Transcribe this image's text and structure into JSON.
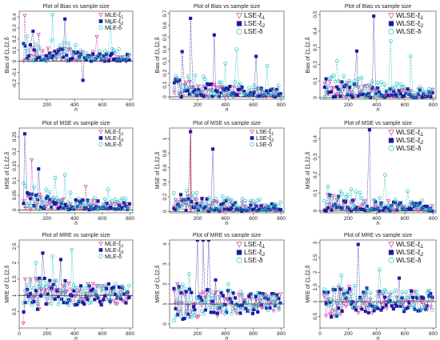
{
  "colors": {
    "xi1": "#d63fa5",
    "xi2": "#1a1aa0",
    "delta": "#28c4c8",
    "highlight": "#ff0000",
    "trend": "#555555"
  },
  "chart_data": [
    {
      "type": "scatter",
      "title": "Plot of Bias vs sample size",
      "xlabel": "n",
      "ylabel": "Bias of ξ1,ξ2,δ",
      "xlim": [
        0,
        820
      ],
      "ylim": [
        -0.34,
        0.45
      ],
      "yticks": [
        -0.2,
        -0.1,
        0.0,
        0.1,
        0.2,
        0.3,
        0.4
      ],
      "xticks": [
        200,
        400,
        600,
        800
      ],
      "legend": "top-right",
      "legend_size": "small",
      "series": [
        {
          "name": "MLE-ξ1",
          "key": "xi1"
        },
        {
          "name": "MLE-ξ2",
          "key": "xi2"
        },
        {
          "name": "MLE-δ",
          "key": "delta"
        }
      ],
      "ref_line": 0,
      "peaks": [
        [
          40,
          0.41,
          0
        ],
        [
          100,
          0.27,
          1
        ],
        [
          140,
          0.24,
          0
        ],
        [
          240,
          0.42,
          2
        ],
        [
          330,
          0.38,
          1
        ],
        [
          660,
          0.35,
          2
        ],
        [
          460,
          -0.17,
          1
        ],
        [
          560,
          0.22,
          0
        ]
      ]
    },
    {
      "type": "scatter",
      "title": "Plot of Bias vs sample size",
      "xlabel": "n",
      "ylabel": "Bias of ξ1,ξ2,δ",
      "xlim": [
        0,
        820
      ],
      "ylim": [
        -0.02,
        0.72
      ],
      "yticks": [
        0.0,
        0.1,
        0.2,
        0.3,
        0.4,
        0.5,
        0.6,
        0.7
      ],
      "xticks": [
        200,
        400,
        600,
        800
      ],
      "legend": "top-right",
      "legend_size": "large",
      "series": [
        {
          "name": "LSE-ξ1",
          "key": "xi1"
        },
        {
          "name": "LSE-ξ2",
          "key": "xi2"
        },
        {
          "name": "LSE-δ",
          "key": "delta"
        }
      ],
      "ref_line": 0,
      "peaks": [
        [
          150,
          0.66,
          1
        ],
        [
          320,
          0.52,
          1
        ],
        [
          480,
          0.4,
          2
        ],
        [
          620,
          0.34,
          1
        ],
        [
          90,
          0.38,
          1
        ],
        [
          400,
          0.28,
          2
        ],
        [
          700,
          0.26,
          2
        ]
      ]
    },
    {
      "type": "scatter",
      "title": "Plot of Bias vs sample size",
      "xlabel": "n",
      "ylabel": "Bias of ξ1,ξ2,δ",
      "xlim": [
        0,
        820
      ],
      "ylim": [
        -0.01,
        0.52
      ],
      "yticks": [
        0.0,
        0.1,
        0.2,
        0.3,
        0.4,
        0.5
      ],
      "xticks": [
        200,
        400,
        600,
        800
      ],
      "legend": "top-right",
      "legend_size": "large",
      "series": [
        {
          "name": "WLSE-ξ1",
          "key": "xi1"
        },
        {
          "name": "WLSE-ξ2",
          "key": "xi2"
        },
        {
          "name": "WLSE-δ",
          "key": "delta"
        }
      ],
      "ref_line": 0,
      "peaks": [
        [
          380,
          0.49,
          1
        ],
        [
          500,
          0.34,
          2
        ],
        [
          260,
          0.28,
          1
        ],
        [
          640,
          0.25,
          2
        ],
        [
          120,
          0.22,
          2
        ]
      ]
    },
    {
      "type": "scatter",
      "title": "Plot of MSE vs sample size",
      "xlabel": "n",
      "ylabel": "MSE of ξ1,ξ2,δ",
      "xlim": [
        0,
        820
      ],
      "ylim": [
        -0.01,
        0.28
      ],
      "yticks": [
        0.0,
        0.05,
        0.1,
        0.15,
        0.2,
        0.25
      ],
      "xticks": [
        200,
        400,
        600,
        800
      ],
      "legend": "top-right",
      "legend_size": "small",
      "series": [
        {
          "name": "MLE-ξ1",
          "key": "xi1"
        },
        {
          "name": "MLE-ξ2",
          "key": "xi2"
        },
        {
          "name": "MLE-δ",
          "key": "delta"
        }
      ],
      "ref_line": 0,
      "peaks": [
        [
          40,
          0.26,
          1
        ],
        [
          90,
          0.17,
          0
        ],
        [
          140,
          0.14,
          1
        ],
        [
          260,
          0.11,
          2
        ],
        [
          330,
          0.12,
          2
        ],
        [
          480,
          0.08,
          0
        ],
        [
          640,
          0.07,
          2
        ]
      ]
    },
    {
      "type": "scatter",
      "title": "Plot of MSE vs sample size",
      "xlabel": "n",
      "ylabel": "MSE of ξ1,ξ2,δ",
      "xlim": [
        0,
        820
      ],
      "ylim": [
        -0.02,
        1.15
      ],
      "yticks": [
        0.0,
        0.2,
        0.4,
        0.6,
        0.8,
        1.0
      ],
      "xticks": [
        200,
        400,
        600,
        800
      ],
      "legend": "top-right",
      "legend_size": "small",
      "series": [
        {
          "name": "LSE-ξ1",
          "key": "xi1"
        },
        {
          "name": "LSE-ξ2",
          "key": "xi2"
        },
        {
          "name": "LSE-δ",
          "key": "delta"
        }
      ],
      "ref_line": 0,
      "vline": 150,
      "peaks": [
        [
          150,
          1.1,
          1
        ],
        [
          310,
          0.86,
          1
        ],
        [
          110,
          0.14,
          2
        ],
        [
          420,
          0.18,
          2
        ],
        [
          600,
          0.14,
          2
        ]
      ]
    },
    {
      "type": "scatter",
      "title": "Plot of MSE vs sample size",
      "xlabel": "n",
      "ylabel": "MSE of ξ1,ξ2,δ",
      "xlim": [
        0,
        820
      ],
      "ylim": [
        -0.01,
        0.46
      ],
      "yticks": [
        0.0,
        0.1,
        0.2,
        0.3,
        0.4
      ],
      "xticks": [
        200,
        400,
        600,
        800
      ],
      "legend": "top-right",
      "legend_size": "large",
      "series": [
        {
          "name": "WLSE-ξ1",
          "key": "xi1"
        },
        {
          "name": "WLSE-ξ2",
          "key": "xi2"
        },
        {
          "name": "WLSE-δ",
          "key": "delta"
        }
      ],
      "ref_line": 0,
      "peaks": [
        [
          350,
          0.45,
          1
        ],
        [
          220,
          0.12,
          2
        ],
        [
          460,
          0.2,
          2
        ],
        [
          620,
          0.11,
          2
        ]
      ]
    },
    {
      "type": "scatter",
      "title": "Plot of MRE vs sample size",
      "xlabel": "n",
      "ylabel": "MRE of ξ1,ξ2,δ",
      "xlim": [
        0,
        820
      ],
      "ylim": [
        0.0,
        2.7
      ],
      "yticks": [
        0.5,
        1.0,
        1.5,
        2.0,
        2.5
      ],
      "xticks": [
        0,
        200,
        400,
        600,
        800
      ],
      "legend": "top-right",
      "legend_size": "small",
      "series": [
        {
          "name": "MLE-ξ1",
          "key": "xi1"
        },
        {
          "name": "MLE-ξ2",
          "key": "xi2"
        },
        {
          "name": "MLE-δ",
          "key": "delta"
        }
      ],
      "ref_line": 1,
      "peaks": [
        [
          120,
          2.0,
          2
        ],
        [
          170,
          2.3,
          1
        ],
        [
          240,
          2.2,
          2
        ],
        [
          300,
          2.1,
          1
        ],
        [
          380,
          2.4,
          2
        ],
        [
          30,
          0.15,
          0
        ]
      ]
    },
    {
      "type": "scatter",
      "title": "Plot of MRE vs sample size",
      "xlabel": "n",
      "ylabel": "MRE of ξ1,ξ2,δ",
      "xlim": [
        0,
        820
      ],
      "ylim": [
        -0.2,
        4.2
      ],
      "yticks": [
        0,
        1,
        2,
        3,
        4
      ],
      "xticks": [
        200,
        400,
        600,
        800
      ],
      "legend": "top-right",
      "legend_size": "large",
      "series": [
        {
          "name": "LSE-ξ1",
          "key": "xi1"
        },
        {
          "name": "LSE-ξ2",
          "key": "xi2"
        },
        {
          "name": "LSE-δ",
          "key": "delta"
        }
      ],
      "ref_line": 1,
      "peaks": [
        [
          200,
          4.2,
          1
        ],
        [
          240,
          4.2,
          1
        ],
        [
          280,
          4.2,
          1
        ],
        [
          140,
          2.5,
          2
        ],
        [
          330,
          2.2,
          1
        ],
        [
          420,
          2.0,
          2
        ]
      ]
    },
    {
      "type": "scatter",
      "title": "Plot of MRE vs sample size",
      "xlabel": "n",
      "ylabel": "MRE of ξ1,ξ2,δ",
      "xlim": [
        0,
        820
      ],
      "ylim": [
        0.1,
        3.1
      ],
      "yticks": [
        0.5,
        1.0,
        1.5,
        2.0,
        2.5,
        3.0
      ],
      "xticks": [
        0,
        200,
        400,
        600,
        800
      ],
      "legend": "top-right",
      "legend_size": "large",
      "series": [
        {
          "name": "WLSE-ξ1",
          "key": "xi1"
        },
        {
          "name": "WLSE-ξ2",
          "key": "xi2"
        },
        {
          "name": "WLSE-δ",
          "key": "delta"
        }
      ],
      "ref_line": 1,
      "peaks": [
        [
          270,
          2.95,
          1
        ],
        [
          420,
          2.1,
          2
        ],
        [
          150,
          1.9,
          2
        ],
        [
          560,
          1.8,
          1
        ]
      ]
    }
  ]
}
